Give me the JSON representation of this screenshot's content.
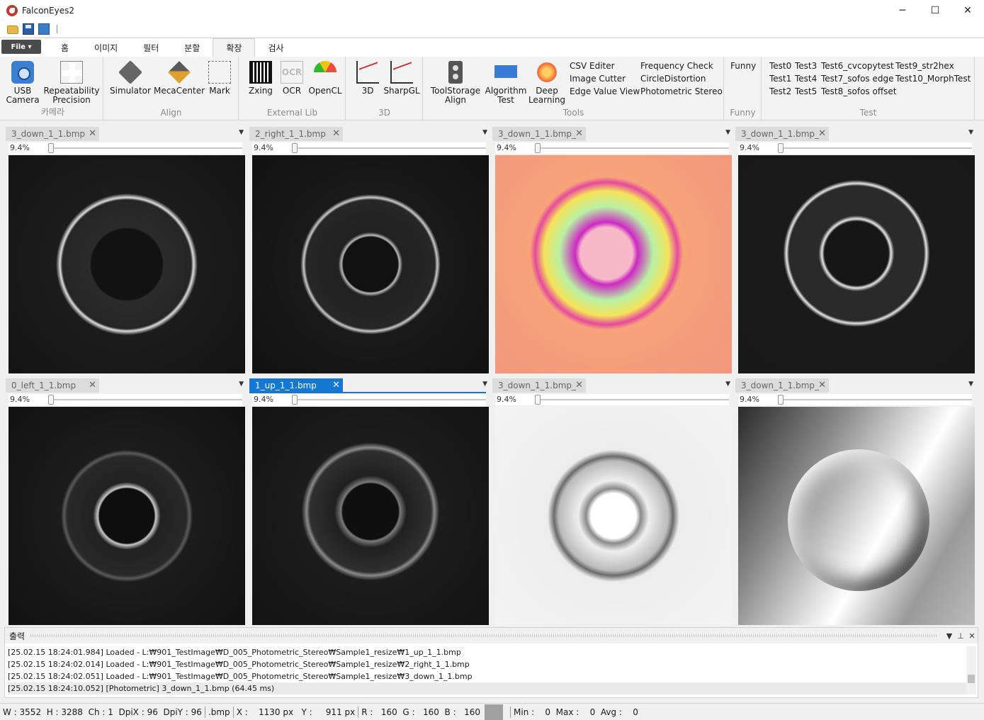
{
  "window": {
    "title": "FalconEyes2",
    "min": "─",
    "max": "☐",
    "close": "✕"
  },
  "ribbon": {
    "file": "File ▾",
    "tabs": [
      "홈",
      "이미지",
      "필터",
      "분할",
      "확장",
      "검사"
    ],
    "groups": {
      "camera": {
        "label": "카메라",
        "usb": [
          "USB",
          "Camera"
        ],
        "repeat": [
          "Repeatability",
          "Precision"
        ]
      },
      "align": {
        "label": "Align",
        "simulator": "Simulator",
        "meca": "MecaCenter",
        "mark": "Mark"
      },
      "extlib": {
        "label": "External Lib",
        "zxing": "Zxing",
        "ocr": "OCR",
        "opencl": "OpenCL",
        "ocr_glyph": "OCR"
      },
      "threed": {
        "label": "3D",
        "threed": "3D",
        "sharpgl": "SharpGL"
      },
      "tools": {
        "label": "Tools",
        "toolstorage": [
          "ToolStorage",
          "Align"
        ],
        "algo": [
          "Algorithm",
          "Test"
        ],
        "deep": [
          "Deep",
          "Learning"
        ],
        "col1": [
          "CSV Editer",
          "Image Cutter",
          "Edge Value View"
        ],
        "col2": [
          "Frequency Check",
          "CircleDistortion",
          "Photometric Stereo"
        ]
      },
      "funny": {
        "label": "Funny",
        "item": "Funny"
      },
      "test": {
        "label": "Test",
        "col1": [
          "Test0",
          "Test1",
          "Test2"
        ],
        "col2": [
          "Test3",
          "Test4",
          "Test5"
        ],
        "col3": [
          "Test6_cvcopytest",
          "Test7_sofos edge",
          "Test8_sofos offset"
        ],
        "col4": [
          "Test9_str2hex",
          "Test10_MorphTest"
        ]
      }
    }
  },
  "panels": [
    {
      "tab": "3_down_1_1.bmp",
      "zoom": "9.4%"
    },
    {
      "tab": "2_right_1_1.bmp",
      "zoom": "9.4%"
    },
    {
      "tab": "3_down_1_1.bmp_",
      "zoom": "9.4%"
    },
    {
      "tab": "3_down_1_1.bmp_",
      "zoom": "9.4%"
    },
    {
      "tab": "0_left_1_1.bmp",
      "zoom": "9.4%"
    },
    {
      "tab": "1_up_1_1.bmp",
      "zoom": "9.4%"
    },
    {
      "tab": "3_down_1_1.bmp_",
      "zoom": "9.4%"
    },
    {
      "tab": "3_down_1_1.bmp_",
      "zoom": "9.4%"
    }
  ],
  "output": {
    "title": "출력",
    "lines": [
      "[25.02.15 18:24:01.984] Loaded - L:₩901_TestImage₩D_005_Photometric_Stereo₩Sample1_resize₩1_up_1_1.bmp",
      "[25.02.15 18:24:02.014] Loaded - L:₩901_TestImage₩D_005_Photometric_Stereo₩Sample1_resize₩2_right_1_1.bmp",
      "[25.02.15 18:24:02.051] Loaded - L:₩901_TestImage₩D_005_Photometric_Stereo₩Sample1_resize₩3_down_1_1.bmp",
      "[25.02.15 18:24:10.052] [Photometric] 3_down_1_1.bmp (64.45 ms)"
    ]
  },
  "status": {
    "dims": "W : 3552  H : 3288  Ch : 1  DpiX : 96  DpiY : 96",
    "ext": ".bmp",
    "coords": "X :    1130 px   Y :     911 px",
    "rgb": "R :   160  G :   160  B :   160",
    "stats": "Min :    0  Max :    0  Avg :    0",
    "swatch_color": "#a0a0a0"
  }
}
